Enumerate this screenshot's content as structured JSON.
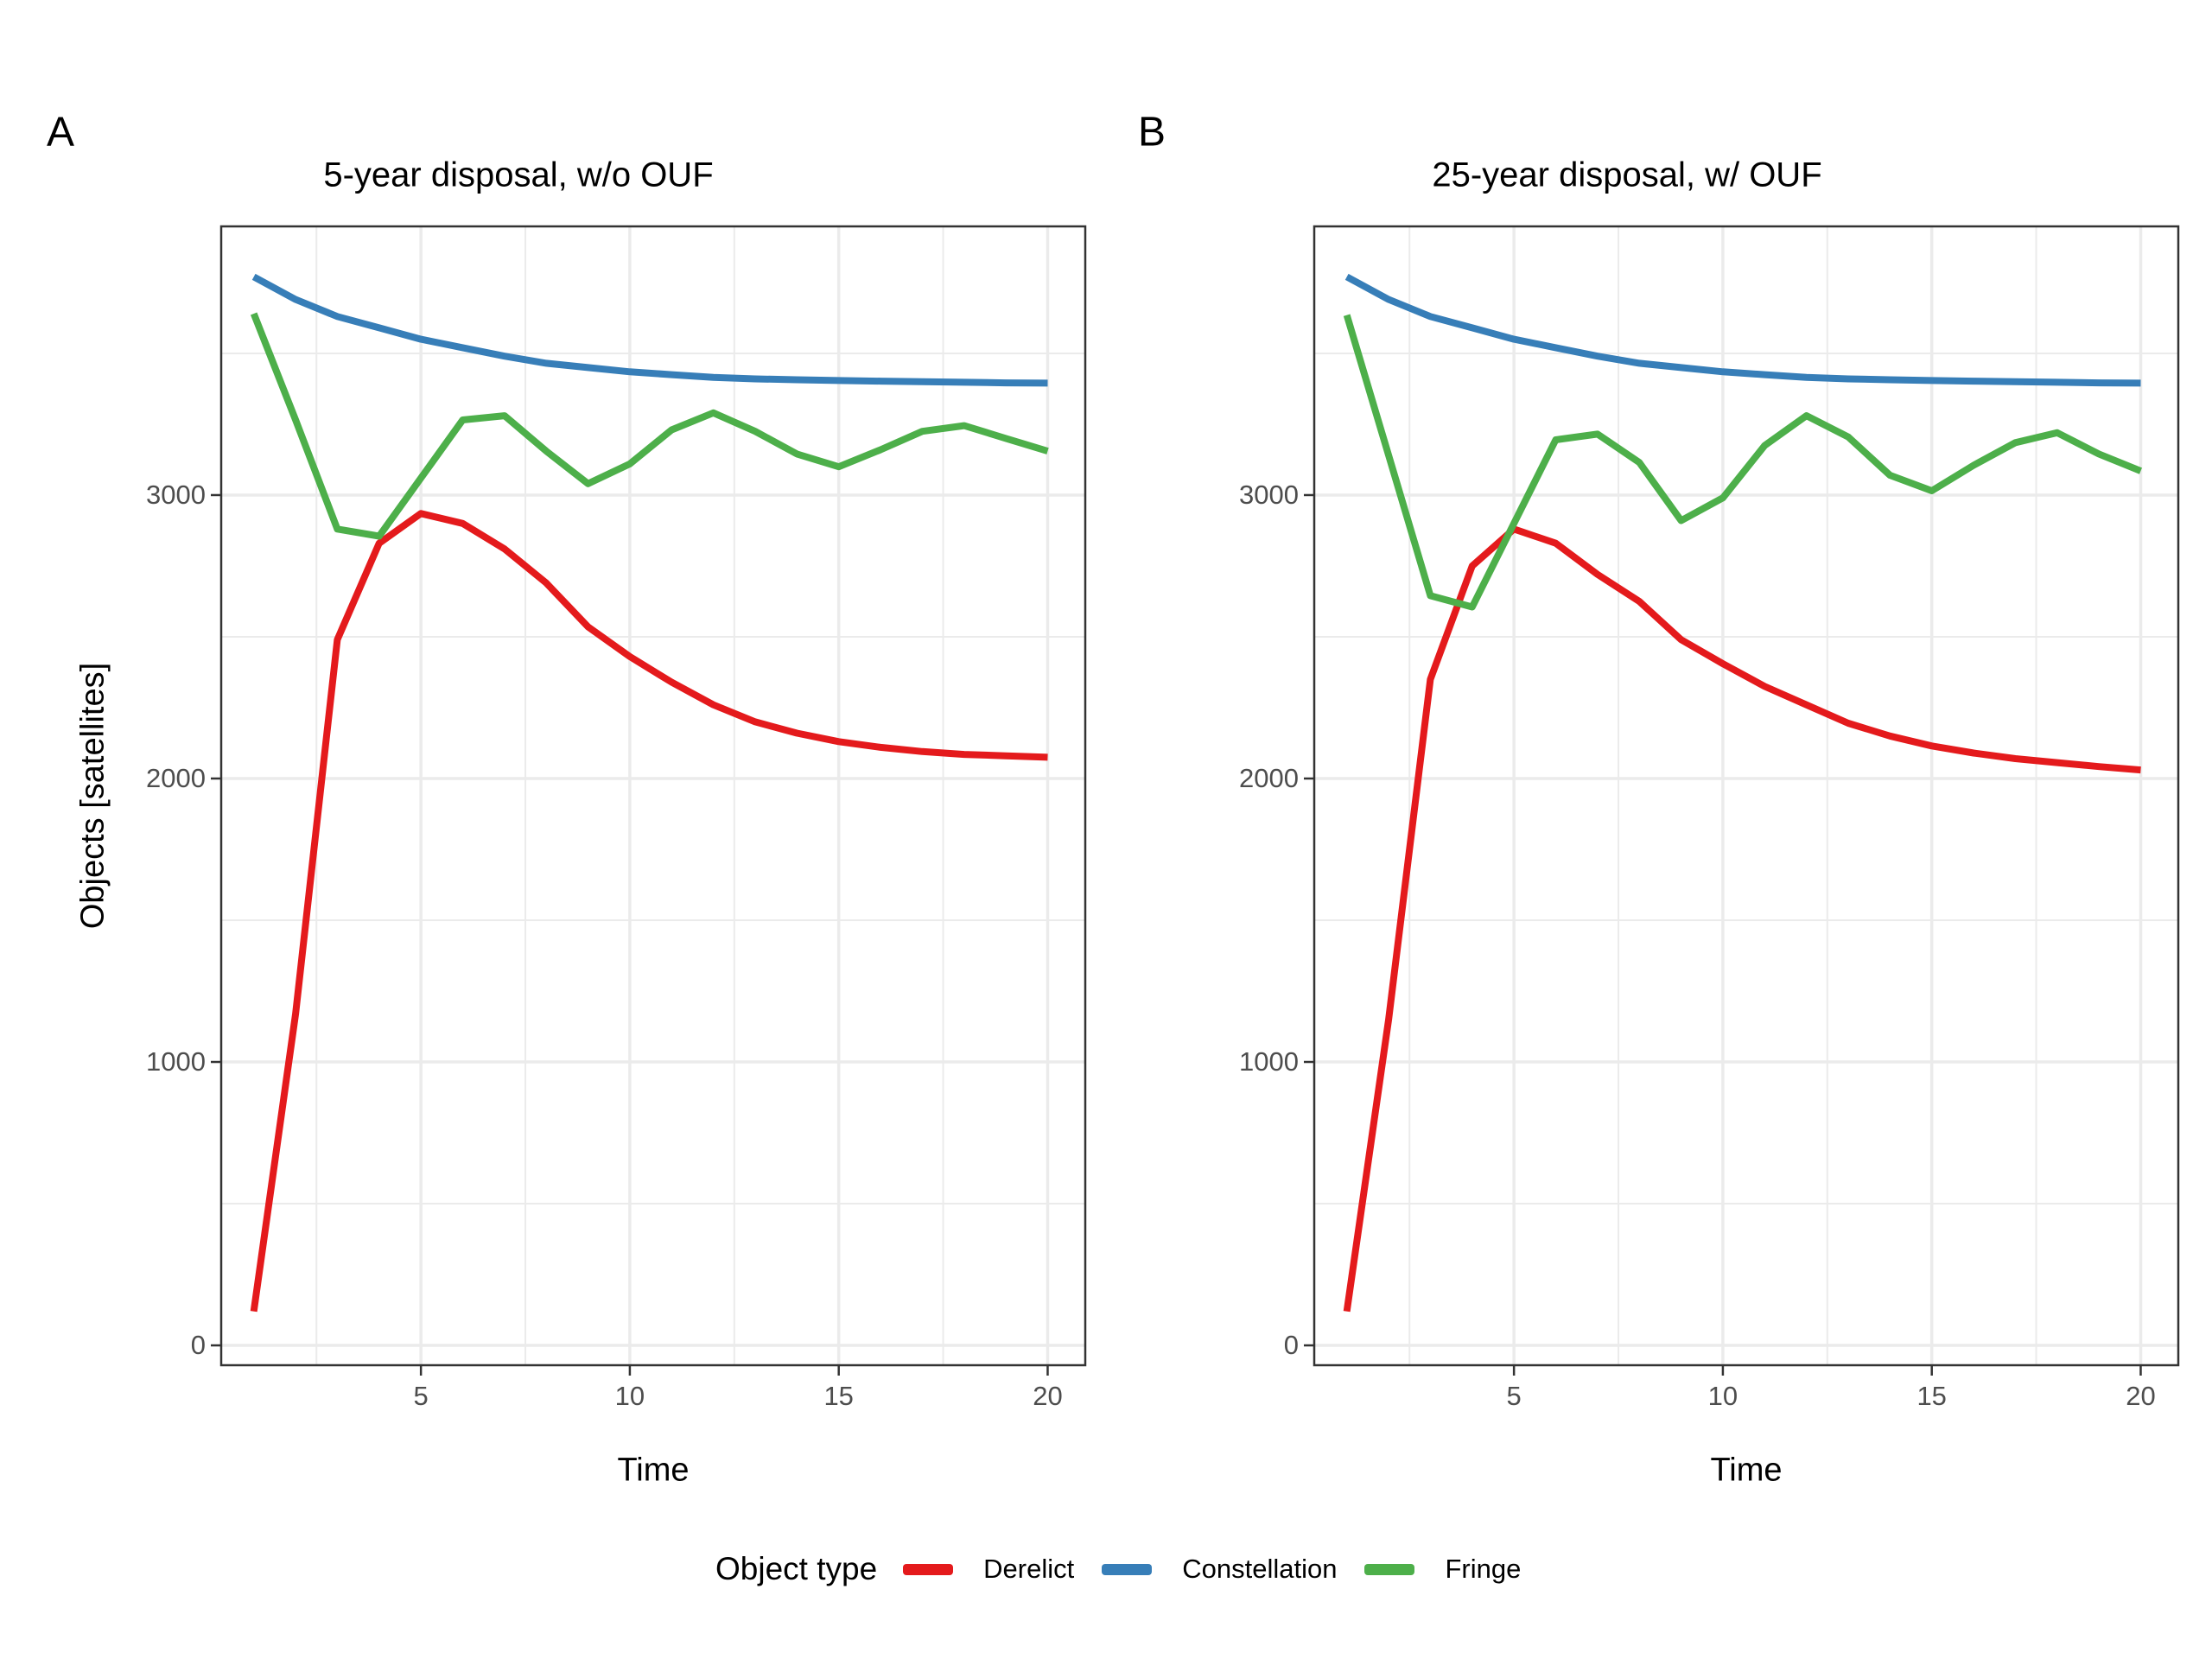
{
  "figure": {
    "panel_a": {
      "tag": "A",
      "title": "5-year disposal, w/o OUF"
    },
    "panel_b": {
      "tag": "B",
      "title": "25-year disposal, w/ OUF"
    },
    "y_axis_label": "Objects [satellites]",
    "x_axis_label": "Time"
  },
  "legend": {
    "title": "Object type",
    "items": [
      {
        "label": "Derelict",
        "color": "#E41A1C"
      },
      {
        "label": "Constellation",
        "color": "#377EB8"
      },
      {
        "label": "Fringe",
        "color": "#4DAF4A"
      }
    ]
  },
  "colors": {
    "derelict": "#E41A1C",
    "constellation": "#377EB8",
    "fringe": "#4DAF4A",
    "gridline": "#EBEBEB",
    "panel_border": "#333333",
    "tick_text": "#4D4D4D",
    "tick_mark": "#333333"
  },
  "chart_data": [
    {
      "type": "line",
      "panel": "A",
      "title": "5-year disposal, w/o OUF",
      "xlabel": "Time",
      "ylabel": "Objects [satellites]",
      "x": [
        1,
        2,
        3,
        4,
        5,
        6,
        7,
        8,
        9,
        10,
        11,
        12,
        13,
        14,
        15,
        16,
        17,
        18,
        19,
        20
      ],
      "series": [
        {
          "name": "Derelict",
          "color": "#E41A1C",
          "values": [
            120,
            1170,
            2490,
            2830,
            2935,
            2900,
            2810,
            2690,
            2535,
            2430,
            2340,
            2260,
            2200,
            2160,
            2130,
            2110,
            2095,
            2085,
            2080,
            2075
          ]
        },
        {
          "name": "Constellation",
          "color": "#377EB8",
          "values": [
            3770,
            3690,
            3630,
            3590,
            3550,
            3520,
            3490,
            3465,
            3450,
            3435,
            3425,
            3415,
            3410,
            3407,
            3404,
            3402,
            3400,
            3398,
            3396,
            3395
          ]
        },
        {
          "name": "Fringe",
          "color": "#4DAF4A",
          "values": [
            3640,
            3265,
            2880,
            2855,
            3060,
            3265,
            3280,
            3155,
            3040,
            3110,
            3230,
            3290,
            3225,
            3145,
            3100,
            3160,
            3225,
            3245,
            3200,
            3155
          ]
        }
      ],
      "xlim": [
        0.22,
        20.9
      ],
      "ylim": [
        -70,
        3948
      ],
      "x_ticks": [
        5,
        10,
        15,
        20
      ],
      "y_ticks": [
        0,
        1000,
        2000,
        3000
      ],
      "x_minor": [
        2.5,
        7.5,
        12.5,
        17.5
      ],
      "y_minor": [
        500,
        1500,
        2500,
        3500
      ],
      "grid": true,
      "legend_position": "bottom"
    },
    {
      "type": "line",
      "panel": "B",
      "title": "25-year disposal, w/ OUF",
      "xlabel": "Time",
      "ylabel": "Objects [satellites]",
      "x": [
        1,
        2,
        3,
        4,
        5,
        6,
        7,
        8,
        9,
        10,
        11,
        12,
        13,
        14,
        15,
        16,
        17,
        18,
        19,
        20
      ],
      "series": [
        {
          "name": "Derelict",
          "color": "#E41A1C",
          "values": [
            120,
            1150,
            2350,
            2750,
            2880,
            2830,
            2720,
            2625,
            2490,
            2405,
            2325,
            2260,
            2195,
            2150,
            2115,
            2090,
            2070,
            2056,
            2042,
            2030
          ]
        },
        {
          "name": "Constellation",
          "color": "#377EB8",
          "values": [
            3770,
            3690,
            3630,
            3590,
            3550,
            3520,
            3490,
            3465,
            3450,
            3435,
            3425,
            3415,
            3410,
            3407,
            3404,
            3402,
            3400,
            3398,
            3396,
            3395
          ]
        },
        {
          "name": "Fringe",
          "color": "#4DAF4A",
          "values": [
            3635,
            3140,
            2645,
            2605,
            2900,
            3195,
            3215,
            3115,
            2910,
            2990,
            3175,
            3280,
            3205,
            3070,
            3015,
            3105,
            3185,
            3220,
            3145,
            3085
          ]
        }
      ],
      "xlim": [
        0.22,
        20.9
      ],
      "ylim": [
        -70,
        3948
      ],
      "x_ticks": [
        5,
        10,
        15,
        20
      ],
      "y_ticks": [
        0,
        1000,
        2000,
        3000
      ],
      "x_minor": [
        2.5,
        7.5,
        12.5,
        17.5
      ],
      "y_minor": [
        500,
        1500,
        2500,
        3500
      ],
      "grid": true,
      "legend_position": "bottom"
    }
  ]
}
